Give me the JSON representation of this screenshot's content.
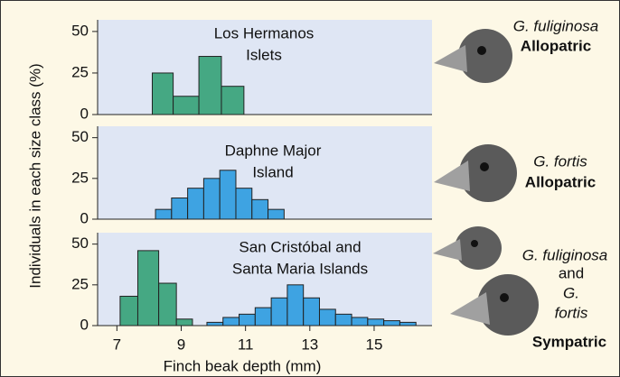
{
  "ylabel": "Individuals in each size class (%)",
  "xlabel": "Finch beak depth (mm)",
  "chart_data": [
    {
      "type": "histogram",
      "title": [
        "Los Hermanos",
        "Islets"
      ],
      "annotations": [
        "G. fuliginosa",
        "Allopatric"
      ],
      "xlim": [
        6.4,
        16.8
      ],
      "ylim": [
        0,
        57
      ],
      "yticks": [
        0,
        25,
        50
      ],
      "series": [
        {
          "color": "#45a883",
          "bins": [
            8.1,
            8.75,
            9.55,
            10.25,
            10.95
          ],
          "values": [
            25,
            11,
            35,
            17
          ]
        }
      ]
    },
    {
      "type": "histogram",
      "title": [
        "Daphne Major",
        "Island"
      ],
      "annotations": [
        "G. fortis",
        "Allopatric"
      ],
      "xlim": [
        6.4,
        16.8
      ],
      "ylim": [
        0,
        57
      ],
      "yticks": [
        0,
        25,
        50
      ],
      "series": [
        {
          "color": "#3ea3e2",
          "bins": [
            8.2,
            8.7,
            9.2,
            9.7,
            10.2,
            10.7,
            11.2,
            11.7,
            12.2
          ],
          "values": [
            6,
            13,
            19,
            25,
            30,
            19,
            12,
            6
          ]
        }
      ]
    },
    {
      "type": "histogram",
      "title": [
        "San Cristóbal and",
        "Santa Maria Islands"
      ],
      "annotations": [
        "G. fuliginosa",
        "and",
        "G.",
        "fortis",
        "Sympatric"
      ],
      "xlim": [
        6.4,
        16.8
      ],
      "ylim": [
        0,
        57
      ],
      "yticks": [
        0,
        25,
        50
      ],
      "xticks": [
        7,
        9,
        11,
        13,
        15
      ],
      "series": [
        {
          "color": "#45a883",
          "bins": [
            7.1,
            7.65,
            8.3,
            8.85,
            9.35
          ],
          "values": [
            18,
            46,
            26,
            4
          ]
        },
        {
          "color": "#3ea3e2",
          "bins": [
            9.8,
            10.3,
            10.8,
            11.3,
            11.8,
            12.3,
            12.8,
            13.3,
            13.8,
            14.3,
            14.8,
            15.3,
            15.8,
            16.3
          ],
          "values": [
            2,
            5,
            7,
            11,
            17,
            25,
            17,
            10,
            7,
            5,
            4,
            3,
            2
          ]
        }
      ]
    }
  ]
}
